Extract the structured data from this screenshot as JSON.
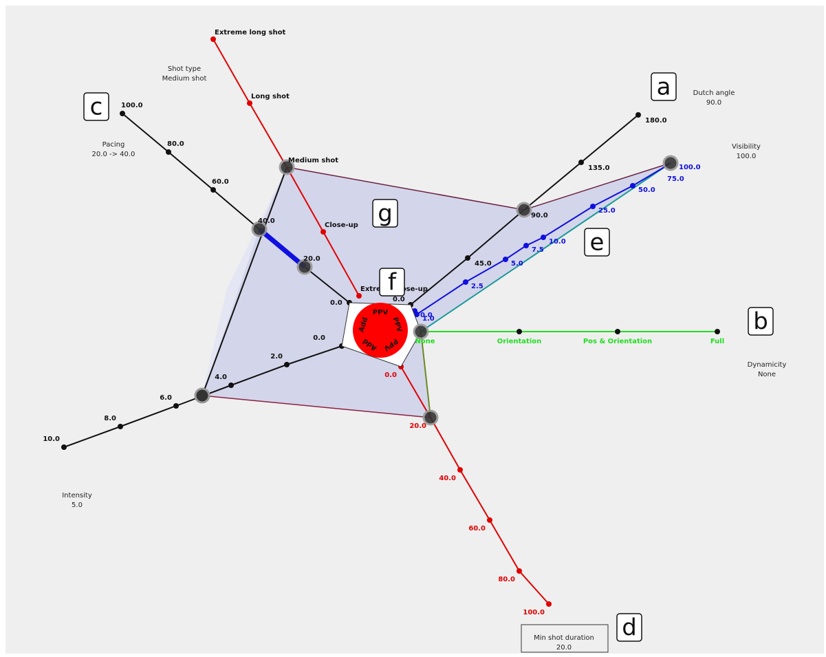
{
  "axes": [
    {
      "title": "Shot type",
      "value": "Medium shot",
      "ticks": [
        "Extreme close-up",
        "Close-up",
        "Medium shot",
        "Long shot",
        "Extreme long shot"
      ]
    },
    {
      "title": "Dutch angle",
      "value": "90.0",
      "ticks": [
        "0.0",
        "45.0",
        "90.0",
        "135.0",
        "180.0"
      ]
    },
    {
      "title": "Visibility",
      "value": "100.0",
      "ticks": [
        "0.0",
        "1.0",
        "2.5",
        "5.0",
        "7.5",
        "10.0",
        "25.0",
        "50.0",
        "75.0",
        "100.0"
      ]
    },
    {
      "title": "Dynamicity",
      "value": "None",
      "ticks": [
        "None",
        "Orientation",
        "Pos & Orientation",
        "Full"
      ]
    },
    {
      "title": "Min shot duration",
      "value": "20.0",
      "ticks": [
        "0.0",
        "20.0",
        "40.0",
        "60.0",
        "80.0",
        "100.0"
      ]
    },
    {
      "title": "Intensity",
      "value": "5.0",
      "ticks": [
        "0.0",
        "2.0",
        "4.0",
        "6.0",
        "8.0",
        "10.0"
      ]
    },
    {
      "title": "Pacing",
      "value": "20.0 -> 40.0",
      "ticks": [
        "0.0",
        "20.0",
        "40.0",
        "60.0",
        "80.0",
        "100.0"
      ]
    }
  ],
  "center_buttons": [
    "PPV",
    "PPV",
    "PPV",
    "Add",
    "Add"
  ],
  "callouts": [
    "a",
    "b",
    "c",
    "d",
    "e",
    "f",
    "g"
  ]
}
